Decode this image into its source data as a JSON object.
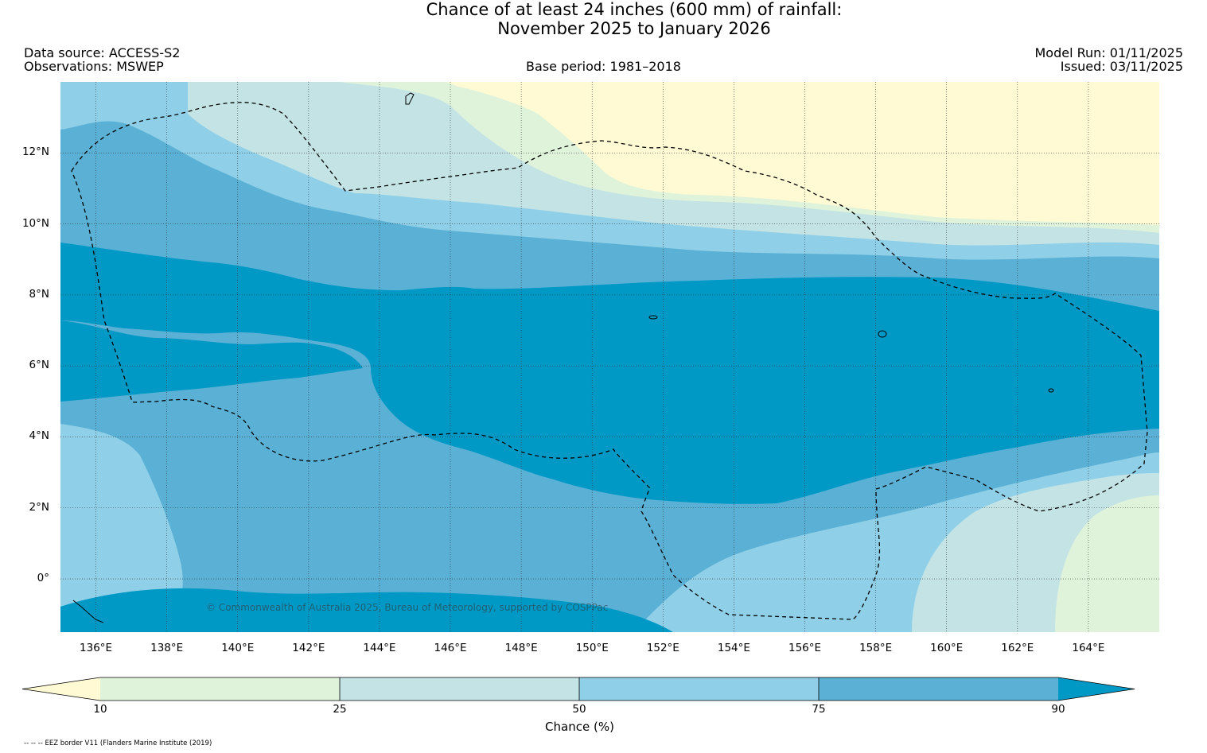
{
  "title": {
    "line1": "Chance of at least 24 inches (600  mm) of rainfall:",
    "line2": "November 2025 to January 2026"
  },
  "header": {
    "data_source": "Data source: ACCESS-S2",
    "observations": "Observations: MSWEP",
    "base_period": "Base period: 1981–2018",
    "model_run": "Model Run: 01/11/2025",
    "issued": "Issued: 03/11/2025"
  },
  "map": {
    "lon_range": [
      135,
      166
    ],
    "lat_range": [
      -1.5,
      14
    ],
    "lon_ticks": [
      "136°E",
      "138°E",
      "140°E",
      "142°E",
      "144°E",
      "146°E",
      "148°E",
      "150°E",
      "152°E",
      "154°E",
      "156°E",
      "158°E",
      "160°E",
      "162°E",
      "164°E"
    ],
    "lat_ticks": [
      "12°N",
      "10°N",
      "8°N",
      "6°N",
      "4°N",
      "2°N",
      "0°"
    ],
    "copyright": "© Commonwealth of Australia 2025, Bureau of Meteorology, supported by COSPPac"
  },
  "colorbar": {
    "label": "Chance (%)",
    "ticks": [
      "10",
      "25",
      "50",
      "75",
      "90"
    ],
    "colors": {
      "below_10": "#fffad4",
      "c10_25": "#dff3da",
      "c25_50": "#c3e3e5",
      "c50_75": "#8fd0e8",
      "c75_90": "#5bb1d5",
      "above_90": "#0099c6"
    }
  },
  "eez_note": "-- -- -- EEZ border V11 (Flanders Marine Institute (2019)"
}
